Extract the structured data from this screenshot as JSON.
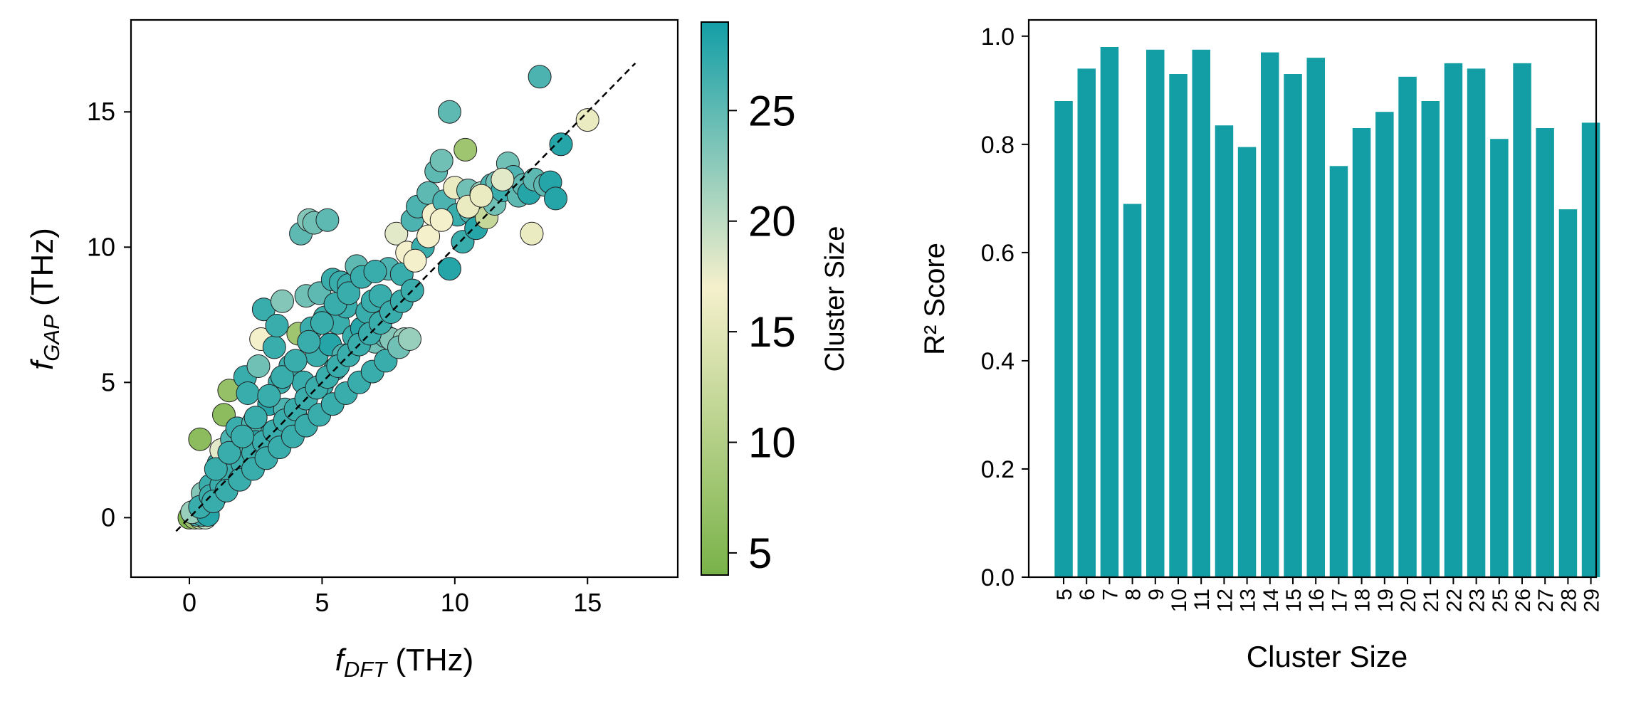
{
  "colors": {
    "cmap_low": "#79b249",
    "cmap_mid": "#f5f0cc",
    "cmap_high": "#139ea6",
    "bar": "#139ea6",
    "edge": "#222222"
  },
  "chart_data": [
    {
      "type": "scatter",
      "xlabel_main": "f",
      "xlabel_sub": "DFT",
      "xlabel_unit": " (THz)",
      "ylabel_main": "f",
      "ylabel_sub": "GAP",
      "ylabel_unit": " (THz)",
      "xlim": [
        -2.2,
        18.4
      ],
      "ylim": [
        -2.2,
        18.4
      ],
      "xticks": [
        "0",
        "5",
        "10",
        "15"
      ],
      "yticks": [
        "0",
        "5",
        "10",
        "15"
      ],
      "identity_line": [
        -0.5,
        16.8
      ],
      "colorbar": {
        "label": "Cluster Size",
        "range": [
          4,
          29
        ],
        "ticks": [
          "5",
          "10",
          "15",
          "20",
          "25"
        ]
      },
      "points": [
        [
          0,
          0,
          5
        ],
        [
          0.2,
          0,
          8
        ],
        [
          0.4,
          0,
          12
        ],
        [
          0.6,
          0,
          20
        ],
        [
          0.3,
          0.1,
          26
        ],
        [
          0.5,
          0.1,
          27
        ],
        [
          0.1,
          0.2,
          22
        ],
        [
          0.7,
          0.1,
          28
        ],
        [
          0.5,
          0.9,
          23
        ],
        [
          0.4,
          2.9,
          6
        ],
        [
          0.8,
          1.2,
          27
        ],
        [
          1.0,
          0.8,
          28
        ],
        [
          1.1,
          2.0,
          27
        ],
        [
          1.3,
          1.5,
          26
        ],
        [
          1.2,
          2.5,
          18
        ],
        [
          1.3,
          3.8,
          6
        ],
        [
          1.5,
          4.7,
          7
        ],
        [
          1.6,
          2.9,
          26
        ],
        [
          1.7,
          2.0,
          28
        ],
        [
          1.8,
          3.3,
          27
        ],
        [
          2.0,
          2.5,
          25
        ],
        [
          2.1,
          5.2,
          27
        ],
        [
          2.2,
          4.6,
          27
        ],
        [
          2.4,
          3.5,
          26
        ],
        [
          2.5,
          2.8,
          28
        ],
        [
          2.6,
          5.6,
          24
        ],
        [
          2.7,
          6.6,
          17
        ],
        [
          2.8,
          7.7,
          27
        ],
        [
          3.0,
          4.2,
          28
        ],
        [
          3.1,
          3.1,
          27
        ],
        [
          3.2,
          6.3,
          27
        ],
        [
          3.3,
          7.1,
          27
        ],
        [
          3.4,
          5.0,
          27
        ],
        [
          3.5,
          8.0,
          23
        ],
        [
          3.6,
          4.0,
          26
        ],
        [
          3.8,
          5.6,
          27
        ],
        [
          4.0,
          3.8,
          27
        ],
        [
          4.1,
          6.8,
          8
        ],
        [
          4.2,
          10.5,
          25
        ],
        [
          4.3,
          5.0,
          27
        ],
        [
          4.4,
          8.2,
          24
        ],
        [
          4.5,
          11.0,
          23
        ],
        [
          4.6,
          7.0,
          27
        ],
        [
          4.7,
          10.9,
          24
        ],
        [
          4.8,
          6.0,
          27
        ],
        [
          4.9,
          8.3,
          25
        ],
        [
          5.0,
          4.9,
          27
        ],
        [
          5.1,
          7.4,
          27
        ],
        [
          5.2,
          11.0,
          25
        ],
        [
          5.3,
          6.4,
          28
        ],
        [
          5.4,
          8.8,
          27
        ],
        [
          5.5,
          5.5,
          27
        ],
        [
          5.6,
          7.2,
          27
        ],
        [
          5.7,
          8.7,
          27
        ],
        [
          5.8,
          6.0,
          26
        ],
        [
          5.9,
          7.8,
          27
        ],
        [
          6.0,
          8.6,
          27
        ],
        [
          6.2,
          6.7,
          27
        ],
        [
          6.3,
          9.3,
          25
        ],
        [
          6.5,
          7.0,
          28
        ],
        [
          6.7,
          7.6,
          27
        ],
        [
          6.9,
          8.0,
          27
        ],
        [
          7.0,
          6.5,
          24
        ],
        [
          7.2,
          8.2,
          27
        ],
        [
          7.4,
          6.7,
          25
        ],
        [
          7.5,
          9.2,
          26
        ],
        [
          7.6,
          6.6,
          23
        ],
        [
          7.8,
          10.5,
          18
        ],
        [
          8.0,
          9.0,
          27
        ],
        [
          8.1,
          6.6,
          22
        ],
        [
          8.2,
          9.8,
          17
        ],
        [
          8.4,
          11.0,
          26
        ],
        [
          8.6,
          11.5,
          26
        ],
        [
          8.8,
          10.0,
          27
        ],
        [
          9.0,
          12.0,
          25
        ],
        [
          9.2,
          11.2,
          17
        ],
        [
          9.3,
          12.8,
          25
        ],
        [
          9.5,
          13.2,
          24
        ],
        [
          9.6,
          11.7,
          26
        ],
        [
          9.8,
          9.2,
          28
        ],
        [
          9.8,
          15.0,
          25
        ],
        [
          10.0,
          12.2,
          16
        ],
        [
          10.1,
          11.2,
          27
        ],
        [
          10.3,
          10.2,
          27
        ],
        [
          10.4,
          13.6,
          8
        ],
        [
          10.5,
          12.1,
          24
        ],
        [
          10.6,
          11.3,
          26
        ],
        [
          10.8,
          10.7,
          28
        ],
        [
          11.0,
          12.0,
          22
        ],
        [
          11.2,
          11.1,
          12
        ],
        [
          11.4,
          12.3,
          26
        ],
        [
          11.5,
          11.6,
          24
        ],
        [
          11.6,
          12.4,
          24
        ],
        [
          11.8,
          12.1,
          27
        ],
        [
          12.0,
          13.1,
          24
        ],
        [
          12.2,
          12.6,
          26
        ],
        [
          12.4,
          11.9,
          25
        ],
        [
          12.6,
          12.3,
          25
        ],
        [
          12.8,
          12.0,
          28
        ],
        [
          12.9,
          10.5,
          16
        ],
        [
          13.0,
          12.5,
          25
        ],
        [
          13.2,
          16.3,
          26
        ],
        [
          13.4,
          12.3,
          25
        ],
        [
          13.6,
          12.4,
          28
        ],
        [
          13.8,
          11.8,
          28
        ],
        [
          14.0,
          13.8,
          28
        ],
        [
          15.0,
          14.7,
          16
        ],
        [
          0.4,
          0.4,
          27
        ],
        [
          0.8,
          0.8,
          27
        ],
        [
          1.2,
          1.2,
          27
        ],
        [
          1.6,
          1.6,
          27
        ],
        [
          2.0,
          2.0,
          27
        ],
        [
          2.4,
          2.4,
          27
        ],
        [
          2.8,
          2.8,
          27
        ],
        [
          3.2,
          3.2,
          27
        ],
        [
          3.6,
          3.6,
          27
        ],
        [
          4.0,
          4.0,
          27
        ],
        [
          4.4,
          4.4,
          27
        ],
        [
          4.8,
          4.8,
          27
        ],
        [
          5.2,
          5.2,
          27
        ],
        [
          5.6,
          5.6,
          27
        ],
        [
          6.0,
          6.0,
          27
        ],
        [
          6.4,
          6.4,
          27
        ],
        [
          6.8,
          6.8,
          27
        ],
        [
          7.2,
          7.2,
          27
        ],
        [
          7.6,
          7.6,
          27
        ],
        [
          8.0,
          8.0,
          27
        ],
        [
          8.4,
          8.4,
          27
        ],
        [
          0.9,
          0.6,
          27
        ],
        [
          1.4,
          1.0,
          27
        ],
        [
          1.9,
          1.4,
          27
        ],
        [
          2.4,
          1.8,
          27
        ],
        [
          2.9,
          2.2,
          27
        ],
        [
          3.4,
          2.6,
          27
        ],
        [
          3.9,
          3.0,
          27
        ],
        [
          4.4,
          3.4,
          27
        ],
        [
          4.9,
          3.8,
          27
        ],
        [
          5.4,
          4.2,
          27
        ],
        [
          5.9,
          4.6,
          27
        ],
        [
          6.4,
          5.0,
          27
        ],
        [
          6.9,
          5.4,
          27
        ],
        [
          7.4,
          5.8,
          27
        ],
        [
          7.9,
          6.3,
          24
        ],
        [
          8.3,
          6.6,
          22
        ],
        [
          1.0,
          1.8,
          27
        ],
        [
          1.5,
          2.4,
          27
        ],
        [
          2.0,
          3.0,
          27
        ],
        [
          2.5,
          3.7,
          27
        ],
        [
          3.0,
          4.5,
          27
        ],
        [
          3.5,
          5.2,
          27
        ],
        [
          4.0,
          5.8,
          27
        ],
        [
          4.5,
          6.5,
          27
        ],
        [
          5.0,
          7.2,
          27
        ],
        [
          5.5,
          7.9,
          27
        ],
        [
          6.0,
          8.3,
          27
        ],
        [
          6.5,
          8.9,
          27
        ],
        [
          7.0,
          9.1,
          27
        ],
        [
          8.5,
          9.5,
          17
        ],
        [
          9.0,
          10.4,
          17
        ],
        [
          9.5,
          11.0,
          17
        ],
        [
          10.5,
          11.5,
          16
        ],
        [
          11.0,
          11.9,
          16
        ],
        [
          11.8,
          12.5,
          18
        ]
      ]
    },
    {
      "type": "bar",
      "xlabel": "Cluster Size",
      "ylabel": "R² Score",
      "ylim": [
        0,
        1.03
      ],
      "yticks": [
        "0.0",
        "0.2",
        "0.4",
        "0.6",
        "0.8",
        "1.0"
      ],
      "categories": [
        "5",
        "6",
        "7",
        "8",
        "9",
        "10",
        "11",
        "12",
        "13",
        "14",
        "15",
        "16",
        "17",
        "18",
        "19",
        "20",
        "21",
        "22",
        "23",
        "25",
        "26",
        "27",
        "28",
        "29"
      ],
      "values": [
        0.88,
        0.94,
        0.98,
        0.69,
        0.975,
        0.93,
        0.975,
        0.835,
        0.795,
        0.97,
        0.93,
        0.96,
        0.76,
        0.83,
        0.86,
        0.925,
        0.88,
        0.95,
        0.94,
        0.81,
        0.95,
        0.83,
        0.68,
        0.84
      ]
    }
  ]
}
